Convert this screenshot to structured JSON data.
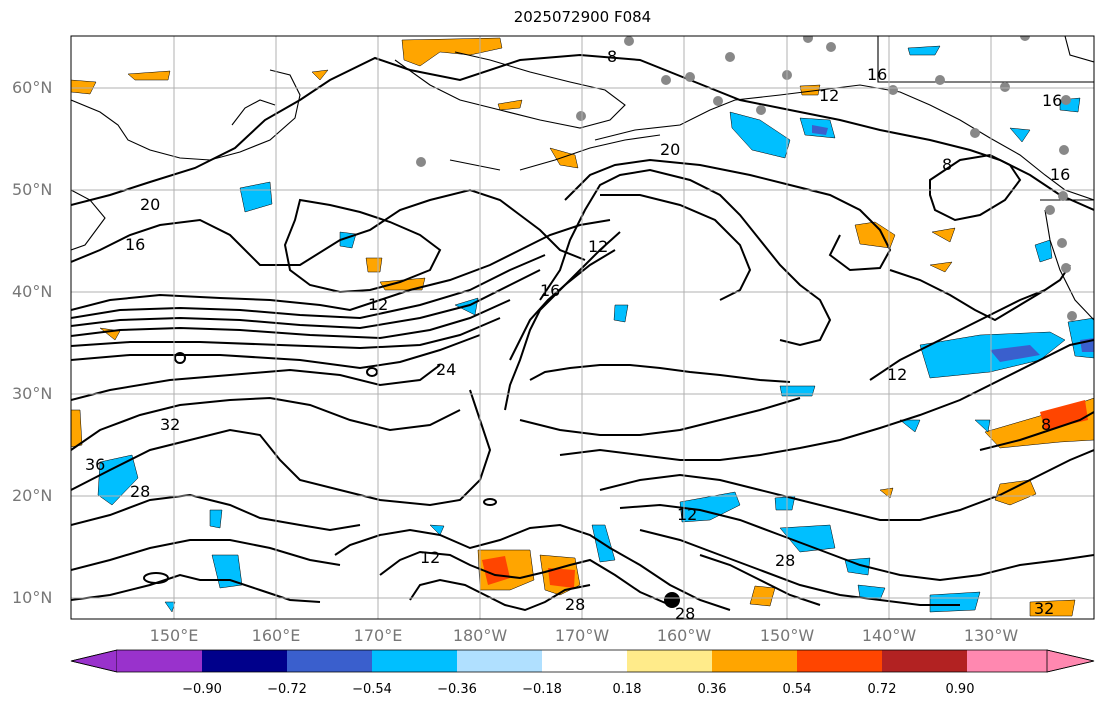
{
  "title": "2025072900 F084",
  "lat_labels": [
    "60°N",
    "50°N",
    "40°N",
    "30°N",
    "20°N",
    "10°N"
  ],
  "lon_labels": [
    "150°E",
    "160°E",
    "170°E",
    "180°W",
    "170°W",
    "160°W",
    "150°W",
    "140°W",
    "130°W"
  ],
  "contour_labels": {
    "c8a": "8",
    "c8b": "8",
    "c8c": "8",
    "c12a": "12",
    "c12b": "12",
    "c12c": "12",
    "c12d": "12",
    "c12e": "12",
    "c12f": "12",
    "c16a": "16",
    "c16b": "16",
    "c16c": "16",
    "c16d": "16",
    "c16e": "16",
    "c20a": "20",
    "c20b": "20",
    "c24": "24",
    "c28a": "28",
    "c28b": "28",
    "c28c": "28",
    "c28d": "28",
    "c32a": "32",
    "c32b": "32",
    "c36": "36"
  },
  "colorbar": {
    "ticks": [
      "−0.90",
      "−0.72",
      "−0.54",
      "−0.36",
      "−0.18",
      "0.18",
      "0.36",
      "0.54",
      "0.72",
      "0.90"
    ],
    "colors": [
      "#9932cc",
      "#00008b",
      "#3a5fcd",
      "#00bfff",
      "#b0e0ff",
      "#ffffff",
      "#ffeb8a",
      "#ffa500",
      "#ff4500",
      "#b22222",
      "#ff88b0"
    ]
  },
  "colors": {
    "pos_light": "#ffa500",
    "pos_strong": "#ff4500",
    "neg_light": "#00bfff",
    "neg_mid": "#3a5fcd",
    "contour": "#000000",
    "station": "#888888",
    "grid": "#b0b0b0"
  }
}
